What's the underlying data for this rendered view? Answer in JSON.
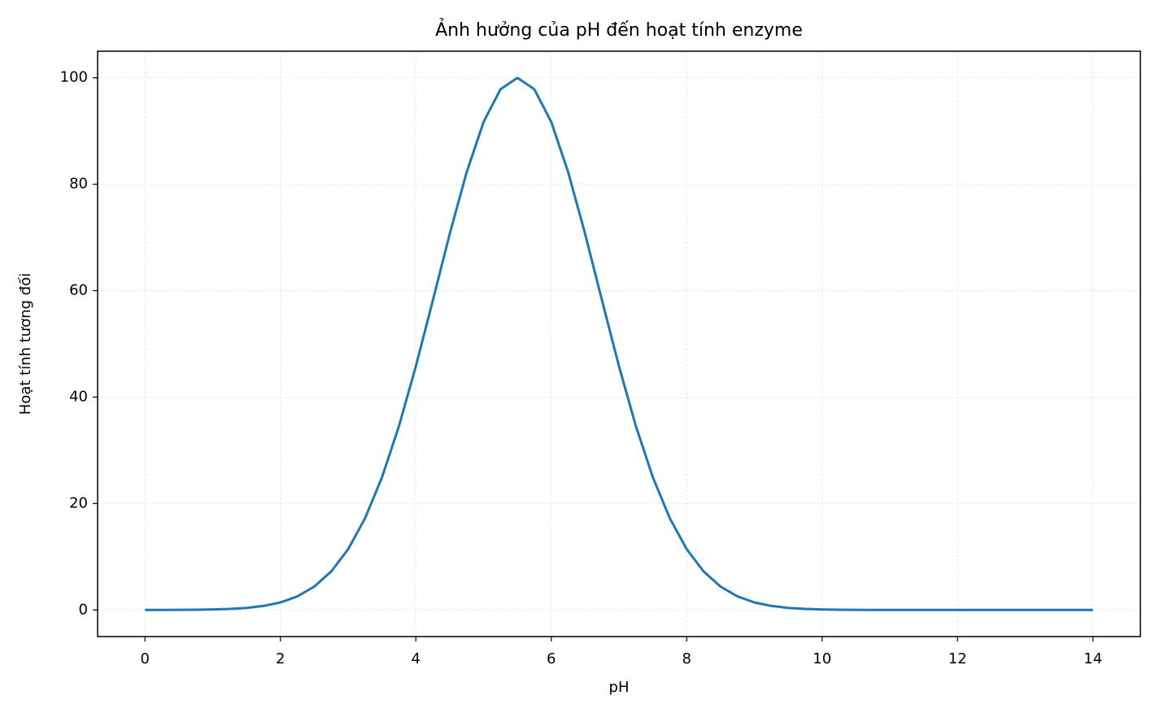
{
  "chart_data": {
    "type": "line",
    "title": "Ảnh hưởng của pH đến hoạt tính enzyme",
    "x_label": "pH",
    "y_label": "Hoạt tính tương đối",
    "x": [
      0,
      0.25,
      0.5,
      0.75,
      1,
      1.25,
      1.5,
      1.75,
      2,
      2.25,
      2.5,
      2.75,
      3,
      3.25,
      3.5,
      3.75,
      4,
      4.25,
      4.5,
      4.75,
      5,
      5.25,
      5.5,
      5.75,
      6,
      6.25,
      6.5,
      6.75,
      7,
      7.25,
      7.5,
      7.75,
      8,
      8.25,
      8.5,
      8.75,
      9,
      9.25,
      9.5,
      9.75,
      10,
      10.25,
      10.5,
      10.75,
      11,
      11.25,
      11.5,
      11.75,
      12,
      12.25,
      12.5,
      12.75,
      13,
      13.25,
      13.5,
      13.75,
      14
    ],
    "series": [
      {
        "name": "Hoạt tính",
        "color": "#1f77b4",
        "values": [
          0,
          0.01,
          0.02,
          0.04,
          0.09,
          0.19,
          0.39,
          0.76,
          1.42,
          2.55,
          4.39,
          7.24,
          11.42,
          17.24,
          24.94,
          34.53,
          45.79,
          58.13,
          70.67,
          82.26,
          91.69,
          97.85,
          100,
          97.85,
          91.69,
          82.26,
          70.67,
          58.13,
          45.79,
          34.53,
          24.94,
          17.24,
          11.42,
          7.24,
          4.39,
          2.55,
          1.42,
          0.76,
          0.39,
          0.19,
          0.09,
          0.04,
          0.02,
          0.01,
          0,
          0,
          0,
          0,
          0,
          0,
          0,
          0,
          0,
          0,
          0,
          0,
          0
        ]
      }
    ],
    "xlim": [
      -0.7,
      14.7
    ],
    "xticks": [
      0,
      2,
      4,
      6,
      8,
      10,
      12,
      14
    ],
    "ylim": [
      -5,
      105
    ],
    "yticks": [
      0,
      20,
      40,
      60,
      80,
      100
    ],
    "grid": true
  }
}
